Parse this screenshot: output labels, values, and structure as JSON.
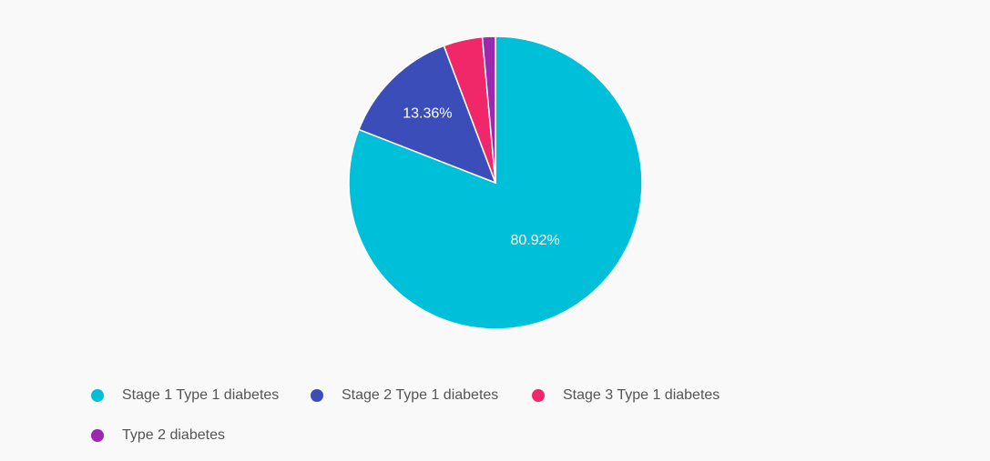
{
  "chart_data": {
    "type": "pie",
    "title": "",
    "legend_position": "bottom-left",
    "categories": [
      "Stage 1 Type 1 diabetes",
      "Stage 2 Type 1 diabetes",
      "Stage 3 Type 1 diabetes",
      "Type 2 diabetes"
    ],
    "values": [
      80.92,
      13.36,
      4.29,
      1.43
    ],
    "data_labels": [
      "80.92%",
      "13.36%",
      "",
      ""
    ],
    "colors": [
      "#00c0d9",
      "#3a4db8",
      "#f0286a",
      "#9c27b0"
    ]
  }
}
